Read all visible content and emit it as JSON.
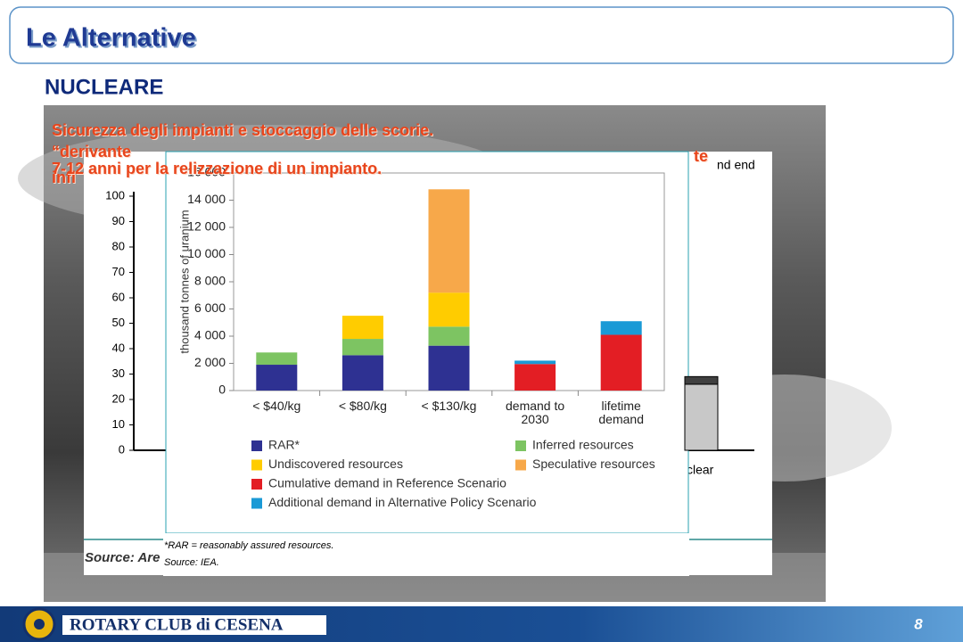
{
  "header": {
    "title": "Le Alternative"
  },
  "section": "NUCLEARE",
  "overlay_texts": [
    "Sicurezza degli impianti e stoccaggio delle scorie.",
    "“derivante",
    "infi",
    "te",
    "7-12 anni per la relizzazione di un impianto."
  ],
  "back_chart": {
    "ylim": [
      0,
      100
    ],
    "yticks": [
      0,
      10,
      20,
      30,
      40,
      50,
      60,
      70,
      80,
      90,
      100
    ],
    "bar_label": "clear",
    "bar_values": [
      26,
      3
    ],
    "bar_colors": [
      "#c8c8c8",
      "#404040"
    ],
    "corner_text": "nd end",
    "source": "Source: Are"
  },
  "chart_data": {
    "type": "bar",
    "stacked": true,
    "y_label": "thousand tonnes of uranium",
    "categories": [
      "< $40/kg",
      "< $80/kg",
      "< $130/kg",
      "demand to 2030",
      "lifetime demand"
    ],
    "ylim": [
      0,
      16000
    ],
    "yticks": [
      0,
      {
        "value": 2000,
        "label": "2 000"
      },
      {
        "value": 4000,
        "label": "4 000"
      },
      {
        "value": 6000,
        "label": "6 000"
      },
      {
        "value": 8000,
        "label": "8 000"
      },
      {
        "value": 10000,
        "label": "10 000"
      },
      {
        "value": 12000,
        "label": "12 000"
      },
      {
        "value": 14000,
        "label": "14 000"
      },
      {
        "value": 16000,
        "label": "16 000"
      }
    ],
    "grid": false,
    "series": [
      {
        "name": "RAR*",
        "color": "#2e3192",
        "values": [
          1900,
          2600,
          3300,
          null,
          null
        ]
      },
      {
        "name": "Inferred resources",
        "color": "#7dc462",
        "values": [
          900,
          1200,
          1400,
          null,
          null
        ]
      },
      {
        "name": "Undiscovered resources",
        "color": "#ffcc00",
        "values": [
          null,
          1700,
          2500,
          null,
          null
        ]
      },
      {
        "name": "Speculative resources",
        "color": "#f7a84a",
        "values": [
          null,
          null,
          7600,
          null,
          null
        ]
      },
      {
        "name": "Cumulative demand in Reference Scenario",
        "color": "#e31e24",
        "values": [
          null,
          null,
          null,
          1950,
          4100
        ]
      },
      {
        "name": "Additional demand in Alternative Policy Scenario",
        "color": "#1a9ad6",
        "values": [
          null,
          null,
          null,
          250,
          1000
        ]
      }
    ]
  },
  "footnote": [
    "*RAR = reasonably assured resources.",
    "Source: IEA."
  ],
  "footer": {
    "club": "ROTARY CLUB di CESENA",
    "page": "8"
  }
}
